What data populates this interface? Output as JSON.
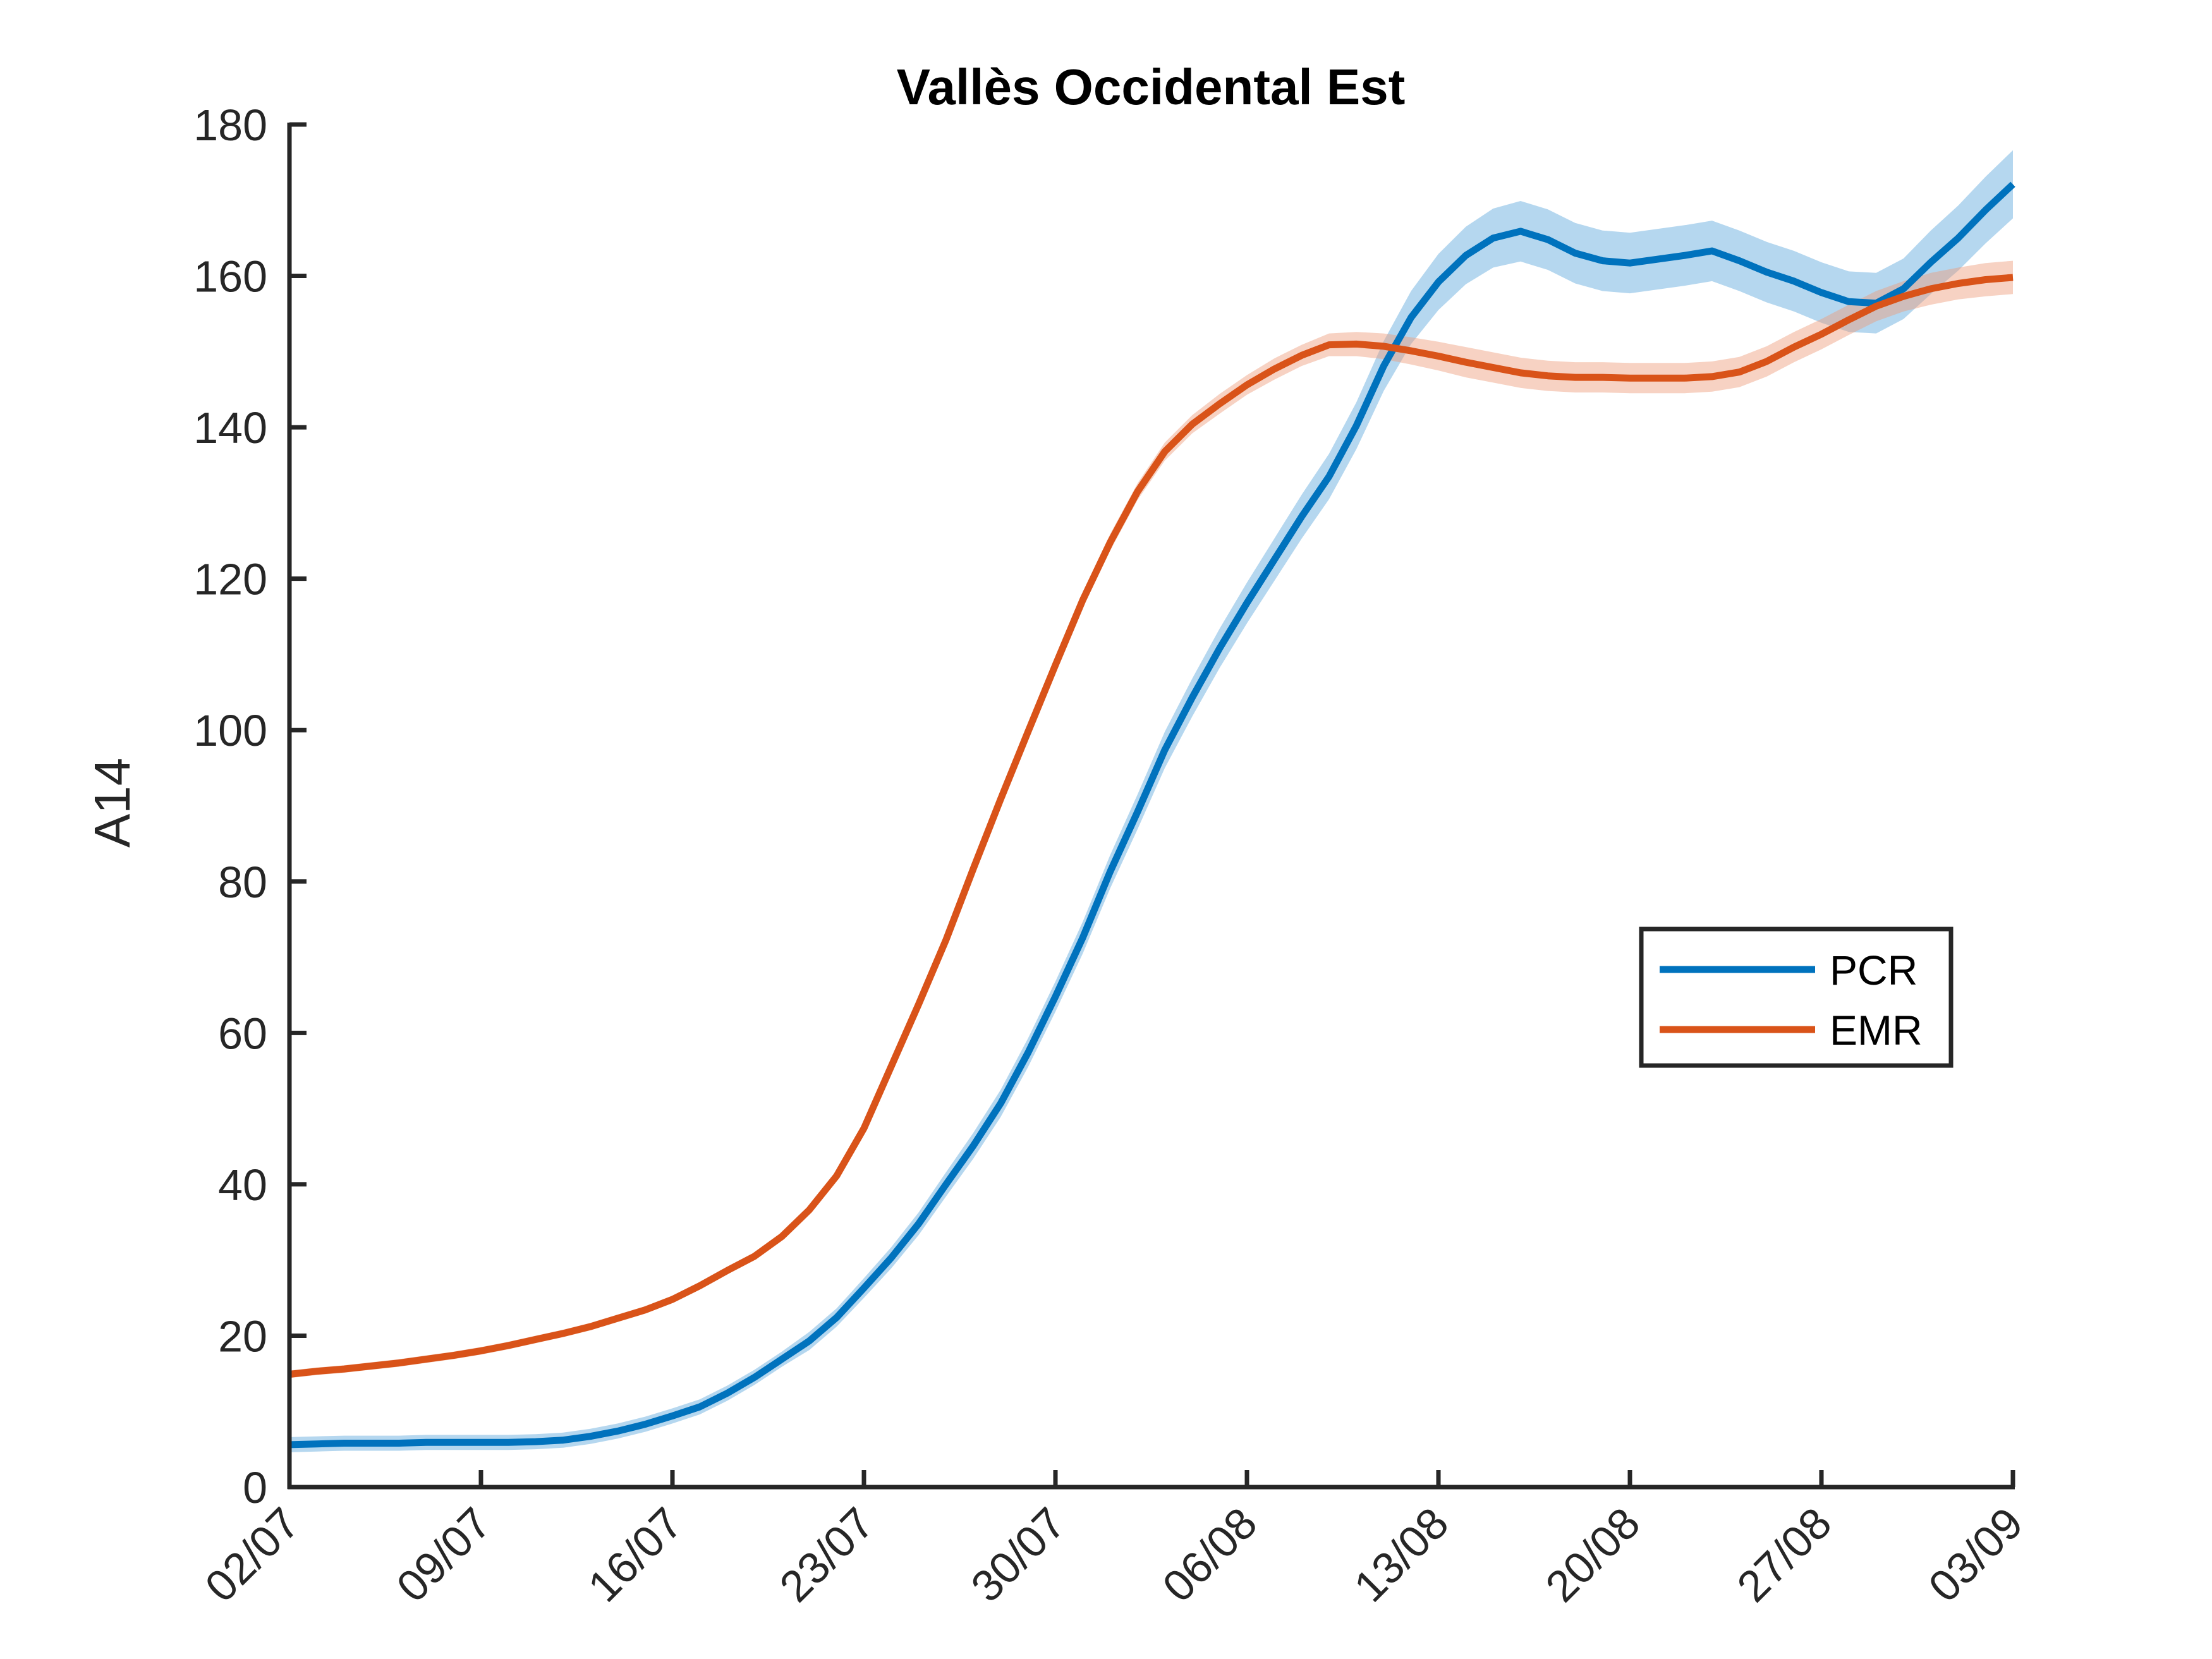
{
  "chart_data": {
    "type": "line",
    "title": "Vallès Occidental Est",
    "xlabel": "",
    "ylabel": "A14",
    "ylim": [
      0,
      180
    ],
    "yticks": [
      0,
      20,
      40,
      60,
      80,
      100,
      120,
      140,
      160,
      180
    ],
    "xtick_labels": [
      "02/07",
      "09/07",
      "16/07",
      "23/07",
      "30/07",
      "06/08",
      "13/08",
      "20/08",
      "27/08",
      "03/09"
    ],
    "x_start": "02/07",
    "x_end": "03/09",
    "grid": false,
    "legend_position": "right",
    "series": [
      {
        "name": "PCR",
        "color": "#0072BD",
        "band_color": "#5BA7DB",
        "band_half_width": [
          1.0,
          1.0,
          1.0,
          1.0,
          1.0,
          1.0,
          1.0,
          1.0,
          1.0,
          1.0,
          1.0,
          1.0,
          1.0,
          1.0,
          1.0,
          1.0,
          1.0,
          1.0,
          1.0,
          1.2,
          1.2,
          1.3,
          1.4,
          1.5,
          1.6,
          1.7,
          1.8,
          1.9,
          2.0,
          2.1,
          2.2,
          2.3,
          2.4,
          2.5,
          2.6,
          2.7,
          2.8,
          2.9,
          3.0,
          3.1,
          3.3,
          3.5,
          3.7,
          3.8,
          3.9,
          4.0,
          4.0,
          4.0,
          4.0,
          4.0,
          4.0,
          4.0,
          4.0,
          4.0,
          4.0,
          4.0,
          4.0,
          4.0,
          4.0,
          4.0,
          4.2,
          4.3,
          4.4,
          4.5
        ],
        "values": [
          5.6,
          5.7,
          5.8,
          5.8,
          5.8,
          5.9,
          5.9,
          5.9,
          5.9,
          6.0,
          6.2,
          6.7,
          7.4,
          8.3,
          9.4,
          10.6,
          12.4,
          14.5,
          16.9,
          19.3,
          22.4,
          26.3,
          30.3,
          34.8,
          40.0,
          45.1,
          50.7,
          57.4,
          64.8,
          72.6,
          81.3,
          89.2,
          97.4,
          104.3,
          110.8,
          116.8,
          122.5,
          128.2,
          133.5,
          140.2,
          148.1,
          154.5,
          159.2,
          162.7,
          165.0,
          165.9,
          164.8,
          163.0,
          162.0,
          161.7,
          162.2,
          162.7,
          163.3,
          162.0,
          160.5,
          159.3,
          157.8,
          156.6,
          156.4,
          158.3,
          161.8,
          165.0,
          168.7,
          172.1
        ]
      },
      {
        "name": "EMR",
        "color": "#D95319",
        "band_color": "#EE9B7B",
        "band_half_width": [
          0.5,
          0.5,
          0.5,
          0.5,
          0.5,
          0.5,
          0.5,
          0.5,
          0.5,
          0.5,
          0.5,
          0.5,
          0.5,
          0.5,
          0.5,
          0.5,
          0.5,
          0.5,
          0.5,
          0.6,
          0.6,
          0.7,
          0.7,
          0.8,
          0.8,
          0.9,
          0.9,
          1.0,
          1.0,
          1.0,
          1.1,
          1.1,
          1.2,
          1.2,
          1.3,
          1.3,
          1.4,
          1.4,
          1.5,
          1.6,
          1.7,
          1.8,
          1.9,
          2.0,
          2.0,
          2.0,
          2.0,
          2.0,
          2.0,
          2.0,
          2.0,
          2.0,
          2.0,
          2.0,
          2.0,
          2.0,
          2.0,
          2.0,
          2.0,
          2.0,
          2.1,
          2.1,
          2.2,
          2.2
        ],
        "values": [
          14.9,
          15.3,
          15.6,
          16.0,
          16.4,
          16.9,
          17.4,
          18.0,
          18.7,
          19.5,
          20.3,
          21.2,
          22.3,
          23.4,
          24.8,
          26.6,
          28.6,
          30.5,
          33.1,
          36.6,
          41.1,
          47.4,
          55.6,
          63.8,
          72.3,
          81.7,
          90.9,
          99.8,
          108.6,
          117.2,
          124.8,
          131.5,
          136.8,
          140.4,
          143.1,
          145.6,
          147.7,
          149.5,
          150.9,
          151.0,
          150.7,
          150.1,
          149.4,
          148.6,
          147.9,
          147.2,
          146.8,
          146.6,
          146.6,
          146.5,
          146.5,
          146.5,
          146.7,
          147.3,
          148.7,
          150.6,
          152.3,
          154.2,
          156.0,
          157.3,
          158.3,
          159.0,
          159.5,
          159.8
        ]
      }
    ]
  }
}
